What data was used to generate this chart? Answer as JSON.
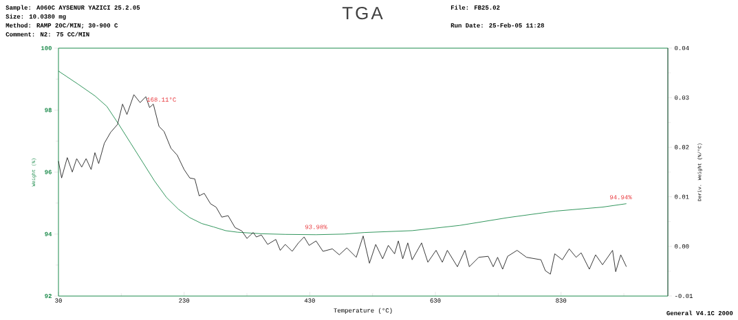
{
  "chart_data": {
    "type": "line",
    "title": "TGA",
    "annotations": [
      "Sample: A060C  AYSENUR YAZICI 25.2.05",
      "Size:    10.0380 mg",
      "Method:  RAMP 20C/MIN; 30-900 C",
      "Comment:  N2: 75 CC/MIN",
      "File:  FB25.02",
      "Run Date:  25-Feb-05 11:28",
      "General V4.1C 2000",
      "168.11°C",
      {
        "text": "93.98%",
        "x": 440,
        "y": 93.98
      },
      {
        "text": "94.94%",
        "x": 925,
        "y": 94.94
      }
    ],
    "xlabel": "Temperature (°C)",
    "ylabel": "Weight (%)",
    "y2label": "Deriv. Weight (%/°C)",
    "xlim": [
      30,
      1000
    ],
    "ylim": [
      92,
      100
    ],
    "y2lim": [
      -0.01,
      0.04
    ],
    "xticks": [
      30,
      {
        "value": 130,
        "label": null
      },
      230,
      {
        "value": 330,
        "label": null
      },
      430,
      {
        "value": 530,
        "label": null
      },
      630,
      {
        "value": 730,
        "label": null
      },
      830,
      {
        "value": 930,
        "label": null
      }
    ],
    "yticks": [
      92,
      {
        "value": 93,
        "label": null
      },
      94,
      {
        "value": 95,
        "label": null
      },
      96,
      {
        "value": 97,
        "label": null
      },
      98,
      {
        "value": 99,
        "label": null
      },
      100
    ],
    "y2ticks": [
      {
        "value": -0.01,
        "label": "-0.01"
      },
      {
        "value": -0.005,
        "label": null
      },
      {
        "value": 0,
        "label": "0.00"
      },
      {
        "value": 0.005,
        "label": null
      },
      {
        "value": 0.01,
        "label": "0.01"
      },
      {
        "value": 0.015,
        "label": null
      },
      {
        "value": 0.02,
        "label": "0.02"
      },
      {
        "value": 0.025,
        "label": null
      },
      {
        "value": 0.03,
        "label": "0.03"
      },
      {
        "value": 0.035,
        "label": null
      },
      {
        "value": 0.04,
        "label": "0.04"
      }
    ],
    "grid": false,
    "series": [
      {
        "color": "#1a8a4a",
        "axis": "y",
        "x": [
          30,
          61,
          88,
          107,
          126,
          145,
          164,
          183,
          202,
          221,
          239,
          258,
          277,
          296,
          315,
          353,
          391,
          440,
          485,
          517,
          593,
          669,
          745,
          821,
          896,
          934
        ],
        "values": [
          99.26,
          98.84,
          98.46,
          98.12,
          97.54,
          96.93,
          96.32,
          95.71,
          95.18,
          94.8,
          94.53,
          94.34,
          94.23,
          94.11,
          94.06,
          94.01,
          93.99,
          93.98,
          94.0,
          94.05,
          94.11,
          94.28,
          94.53,
          94.74,
          94.87,
          94.98
        ]
      },
      {
        "color": "#222222",
        "axis": "y2",
        "x": [
          30,
          35,
          44,
          52,
          59,
          67,
          74,
          82,
          88,
          94,
          103,
          113,
          124,
          132,
          139,
          150,
          160,
          169,
          175,
          181,
          190,
          198,
          209,
          219,
          230,
          239,
          247,
          254,
          262,
          272,
          281,
          290,
          300,
          311,
          322,
          330,
          340,
          345,
          353,
          363,
          376,
          383,
          391,
          402,
          412,
          421,
          429,
          440,
          451,
          466,
          477,
          489,
          504,
          515,
          525,
          535,
          546,
          555,
          565,
          571,
          578,
          586,
          593,
          608,
          618,
          631,
          641,
          649,
          665,
          677,
          684,
          699,
          714,
          722,
          729,
          737,
          745,
          760,
          775,
          798,
          805,
          813,
          820,
          832,
          843,
          854,
          862,
          875,
          885,
          896,
          912,
          917,
          925,
          934
        ],
        "values": [
          0.0172,
          0.0138,
          0.0179,
          0.015,
          0.0177,
          0.016,
          0.0177,
          0.0155,
          0.0189,
          0.0167,
          0.0208,
          0.023,
          0.0246,
          0.0287,
          0.0266,
          0.0306,
          0.029,
          0.0302,
          0.028,
          0.0287,
          0.0242,
          0.0232,
          0.0198,
          0.0184,
          0.0155,
          0.0138,
          0.0136,
          0.0102,
          0.0107,
          0.0086,
          0.0079,
          0.0059,
          0.0062,
          0.0038,
          0.0031,
          0.0016,
          0.0028,
          0.0019,
          0.0023,
          0.0004,
          0.0014,
          -0.0008,
          0.0004,
          -0.001,
          0.0007,
          0.0019,
          0.0002,
          0.0011,
          -0.001,
          -0.0005,
          -0.0017,
          -0.0003,
          -0.0022,
          0.0021,
          -0.0034,
          0.0004,
          -0.0025,
          0.0002,
          -0.0015,
          0.0011,
          -0.0025,
          0.0007,
          -0.0027,
          0.0007,
          -0.0032,
          -0.0008,
          -0.0032,
          -0.0008,
          -0.0041,
          -0.0008,
          -0.0041,
          -0.0022,
          -0.002,
          -0.0041,
          -0.0022,
          -0.0046,
          -0.002,
          -0.0008,
          -0.0022,
          -0.0027,
          -0.0049,
          -0.0056,
          -0.0015,
          -0.0027,
          -0.0005,
          -0.0022,
          -0.0013,
          -0.0046,
          -0.0017,
          -0.0037,
          -0.0008,
          -0.0051,
          -0.0017,
          -0.0041
        ]
      }
    ]
  }
}
